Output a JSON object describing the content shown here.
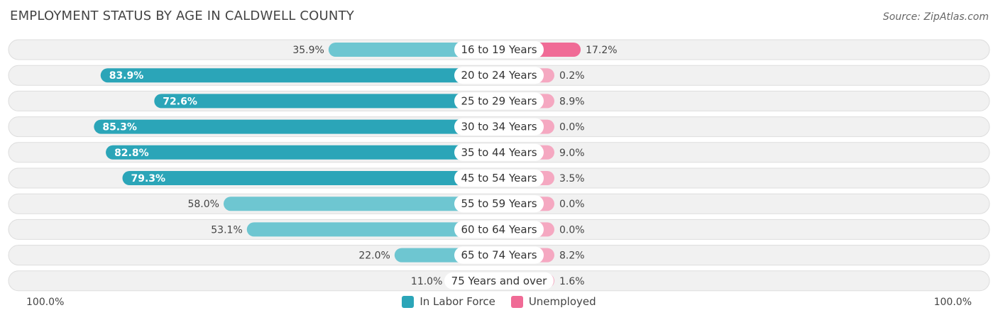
{
  "header": {
    "title": "EMPLOYMENT STATUS BY AGE IN CALDWELL COUNTY",
    "source": "Source: ZipAtlas.com"
  },
  "colors": {
    "labor_strong": "#2ba5b8",
    "labor_light": "#6ec6d1",
    "unemp_strong": "#f06b96",
    "unemp_light": "#f5a8c1",
    "row_bg": "#f1f1f1",
    "row_border": "#dddddd"
  },
  "chart_data": {
    "type": "bar",
    "orientation": "horizontal-diverging",
    "title": "EMPLOYMENT STATUS BY AGE IN CALDWELL COUNTY",
    "categories": [
      "16 to 19 Years",
      "20 to 24 Years",
      "25 to 29 Years",
      "30 to 34 Years",
      "35 to 44 Years",
      "45 to 54 Years",
      "55 to 59 Years",
      "60 to 64 Years",
      "65 to 74 Years",
      "75 Years and over"
    ],
    "series": [
      {
        "name": "In Labor Force",
        "values": [
          35.9,
          83.9,
          72.6,
          85.3,
          82.8,
          79.3,
          58.0,
          53.1,
          22.0,
          11.0
        ],
        "labels": [
          "35.9%",
          "83.9%",
          "72.6%",
          "85.3%",
          "82.8%",
          "79.3%",
          "58.0%",
          "53.1%",
          "22.0%",
          "11.0%"
        ]
      },
      {
        "name": "Unemployed",
        "values": [
          17.2,
          0.2,
          8.9,
          0.0,
          9.0,
          3.5,
          0.0,
          0.0,
          8.2,
          1.6
        ],
        "labels": [
          "17.2%",
          "0.2%",
          "8.9%",
          "0.0%",
          "9.0%",
          "3.5%",
          "0.0%",
          "0.0%",
          "8.2%",
          "1.6%"
        ]
      }
    ],
    "axis": {
      "left_label": "100.0%",
      "right_label": "100.0%",
      "range": [
        0,
        100
      ]
    },
    "legend": [
      "In Labor Force",
      "Unemployed"
    ]
  }
}
